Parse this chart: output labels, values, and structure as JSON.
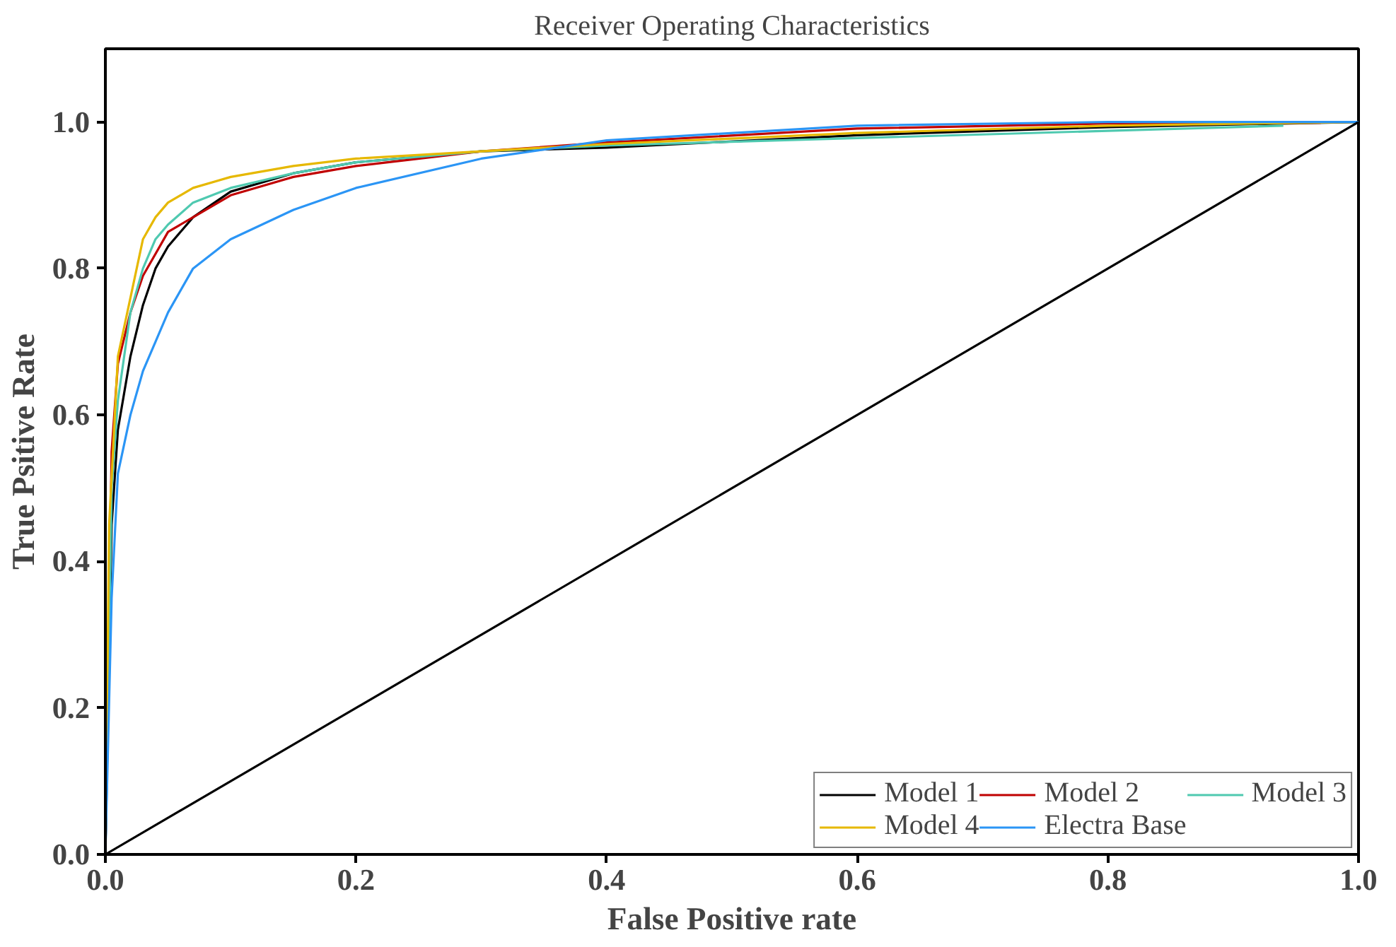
{
  "chart_data": {
    "type": "line",
    "title": "Receiver Operating Characteristics",
    "xlabel": "False Positive rate",
    "ylabel": "True Psitive Rate",
    "xlim": [
      0,
      1
    ],
    "ylim": [
      0,
      1.1
    ],
    "xticks": [
      {
        "value": 0,
        "label": "0.0"
      },
      0.2,
      0.4,
      0.6,
      0.8,
      {
        "value": 1,
        "label": "1.0"
      }
    ],
    "yticks": [
      {
        "value": 0,
        "label": "0.0"
      },
      0.2,
      0.4,
      0.6,
      0.8,
      {
        "value": 1,
        "label": "1.0"
      }
    ],
    "grid": false,
    "legend": "bottom right",
    "line_style": "solid",
    "series": [
      {
        "name": "Model 1",
        "color": "#000000",
        "x": [
          0,
          0.005,
          0.01,
          0.02,
          0.03,
          0.04,
          0.05,
          0.07,
          0.1,
          0.15,
          0.2,
          0.3,
          0.4,
          0.6,
          0.8,
          1
        ],
        "values": [
          0,
          0.45,
          0.58,
          0.68,
          0.75,
          0.8,
          0.83,
          0.87,
          0.905,
          0.93,
          0.945,
          0.96,
          0.965,
          0.982,
          0.993,
          1
        ]
      },
      {
        "name": "Model 2",
        "color": "#c00000",
        "x": [
          0,
          0.005,
          0.01,
          0.02,
          0.03,
          0.04,
          0.05,
          0.07,
          0.1,
          0.15,
          0.2,
          0.3,
          0.4,
          0.6,
          0.8,
          0.97
        ],
        "values": [
          0,
          0.55,
          0.67,
          0.74,
          0.79,
          0.82,
          0.85,
          0.87,
          0.9,
          0.925,
          0.94,
          0.96,
          0.972,
          0.991,
          0.998,
          0.999
        ]
      },
      {
        "name": "Model 3",
        "color": "#4fc9b0",
        "x": [
          0,
          0.005,
          0.01,
          0.02,
          0.03,
          0.04,
          0.05,
          0.07,
          0.1,
          0.15,
          0.2,
          0.3,
          0.4,
          0.6,
          0.8,
          0.94
        ],
        "values": [
          0,
          0.5,
          0.62,
          0.74,
          0.8,
          0.84,
          0.86,
          0.89,
          0.91,
          0.93,
          0.945,
          0.96,
          0.968,
          0.978,
          0.988,
          0.995
        ]
      },
      {
        "name": "Model 4",
        "color": "#e6b800",
        "x": [
          0,
          0.003,
          0.01,
          0.02,
          0.03,
          0.04,
          0.05,
          0.07,
          0.1,
          0.15,
          0.2,
          0.3,
          0.4,
          0.6,
          0.8,
          1
        ],
        "values": [
          0,
          0.45,
          0.68,
          0.76,
          0.84,
          0.87,
          0.89,
          0.91,
          0.925,
          0.94,
          0.95,
          0.96,
          0.97,
          0.985,
          0.995,
          1
        ]
      },
      {
        "name": "Electra Base",
        "color": "#2b95f5",
        "x": [
          0,
          0.005,
          0.01,
          0.02,
          0.03,
          0.04,
          0.05,
          0.07,
          0.1,
          0.15,
          0.2,
          0.3,
          0.4,
          0.6,
          0.8,
          1
        ],
        "values": [
          0,
          0.35,
          0.52,
          0.6,
          0.66,
          0.7,
          0.74,
          0.8,
          0.84,
          0.88,
          0.91,
          0.95,
          0.975,
          0.995,
          1,
          1
        ]
      },
      {
        "color": "#000000",
        "x": [
          0,
          1
        ],
        "values": [
          0,
          1
        ]
      }
    ]
  }
}
